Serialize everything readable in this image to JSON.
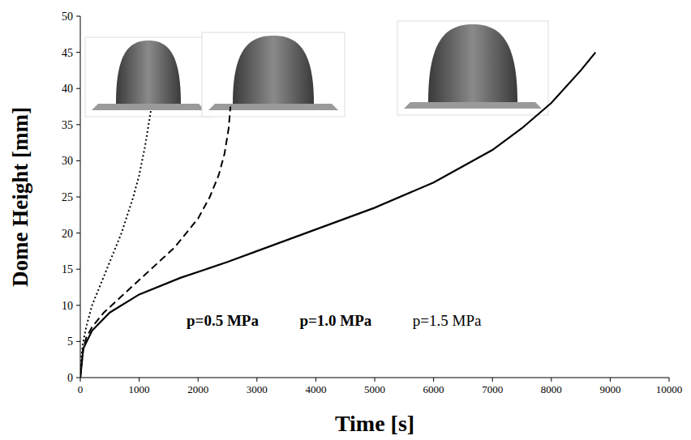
{
  "chart_data": {
    "type": "line",
    "x_label": "Time [s]",
    "y_label": "Dome Height [mm]",
    "xlim": [
      0,
      10000
    ],
    "xticks": [
      0,
      1000,
      2000,
      3000,
      4000,
      5000,
      6000,
      7000,
      8000,
      9000,
      10000
    ],
    "ylim": [
      0,
      50
    ],
    "yticks": [
      0,
      5,
      10,
      15,
      20,
      25,
      30,
      35,
      40,
      45,
      50
    ],
    "grid": false,
    "legend": "bottom",
    "series": [
      {
        "name": "p=0.5 MPa",
        "color": "#000000",
        "line_style": "dotted",
        "x": [
          0,
          20,
          50,
          100,
          200,
          300,
          400,
          500,
          600,
          700,
          800,
          900,
          1000,
          1100,
          1150,
          1200
        ],
        "values": [
          0,
          3,
          5,
          7,
          10,
          12,
          14,
          16,
          18,
          20,
          22.5,
          25,
          28,
          32,
          34.5,
          37
        ]
      },
      {
        "name": "p=1.0 MPa",
        "color": "#000000",
        "line_style": "dashed",
        "x": [
          0,
          50,
          100,
          200,
          400,
          600,
          800,
          1000,
          1200,
          1400,
          1600,
          1800,
          2000,
          2200,
          2350,
          2450,
          2520,
          2550
        ],
        "values": [
          0,
          4,
          5.5,
          7,
          9,
          10.5,
          12,
          13.5,
          15,
          16.5,
          18,
          20,
          22,
          25,
          28,
          31,
          34.5,
          37.5
        ]
      },
      {
        "name": "p=1.5 MPa",
        "color": "#000000",
        "line_style": "solid",
        "x": [
          0,
          50,
          200,
          500,
          1000,
          1700,
          2500,
          3000,
          4000,
          5000,
          6000,
          7000,
          7500,
          8000,
          8500,
          8750
        ],
        "values": [
          0,
          4,
          6.5,
          9,
          11.5,
          13.8,
          16,
          17.5,
          20.5,
          23.5,
          27,
          31.5,
          34.5,
          38,
          42.5,
          45
        ]
      }
    ]
  }
}
